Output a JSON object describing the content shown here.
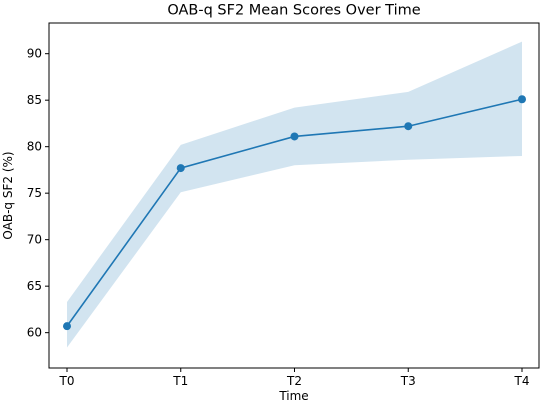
{
  "chart_data": {
    "type": "line",
    "title": "OAB-q SF2 Mean Scores Over Time",
    "xlabel": "Time",
    "ylabel": "OAB-q SF2 (%)",
    "categories": [
      "T0",
      "T1",
      "T2",
      "T3",
      "T4"
    ],
    "series": [
      {
        "values": [
          60.7,
          77.7,
          81.1,
          82.2,
          85.1
        ],
        "ci_lower": [
          58.4,
          75.1,
          78.0,
          78.6,
          79.0
        ],
        "ci_upper": [
          63.3,
          80.2,
          84.2,
          85.9,
          91.3
        ]
      }
    ],
    "ylim": [
      56.2,
      93.3
    ],
    "yticks": [
      60,
      65,
      70,
      75,
      80,
      85,
      90
    ],
    "grid": false,
    "legend": false,
    "colors": {
      "line": "#1f77b4",
      "band": "#1f77b4"
    }
  }
}
